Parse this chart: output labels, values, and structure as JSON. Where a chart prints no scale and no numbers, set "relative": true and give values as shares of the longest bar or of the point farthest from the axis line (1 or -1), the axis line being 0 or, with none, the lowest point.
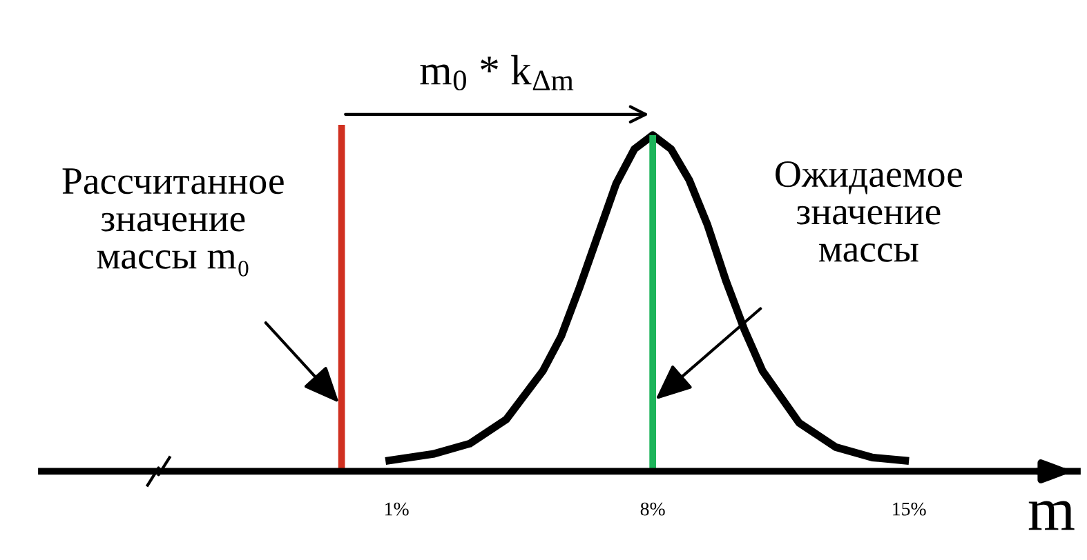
{
  "chart_data": {
    "type": "line",
    "relative": true,
    "xlabel": "m",
    "xlim": [
      -8.7,
      19.6
    ],
    "xticks": [
      {
        "value": 1,
        "label": "1%"
      },
      {
        "value": 8,
        "label": "8%"
      },
      {
        "value": 15,
        "label": "15%"
      }
    ],
    "series": [
      {
        "color": "#000000",
        "x": [
          0.7,
          2,
          3,
          4,
          5,
          5.5,
          6,
          6.5,
          7,
          7.5,
          8,
          8.5,
          9,
          9.5,
          10,
          10.5,
          11,
          12,
          13,
          14,
          15
        ],
        "values": [
          0.03,
          0.05,
          0.08,
          0.15,
          0.29,
          0.39,
          0.53,
          0.68,
          0.83,
          0.93,
          0.97,
          0.93,
          0.84,
          0.71,
          0.55,
          0.41,
          0.29,
          0.14,
          0.07,
          0.04,
          0.03
        ]
      },
      {
        "color": "#d03020",
        "x": [
          -0.5,
          -0.5
        ],
        "values": [
          0,
          1
        ]
      },
      {
        "color": "#1db45a",
        "x": [
          8,
          8
        ],
        "values": [
          0,
          0.97
        ]
      }
    ],
    "annotations": [
      "m$_{0}$ * k$_{Δm}$",
      "Рассчитанное\nзначение\nмассы m₀",
      "Ожидаемое\nзначение\nмассы"
    ],
    "grid": false,
    "legend": false,
    "marker": "none",
    "line_style": "solid"
  }
}
